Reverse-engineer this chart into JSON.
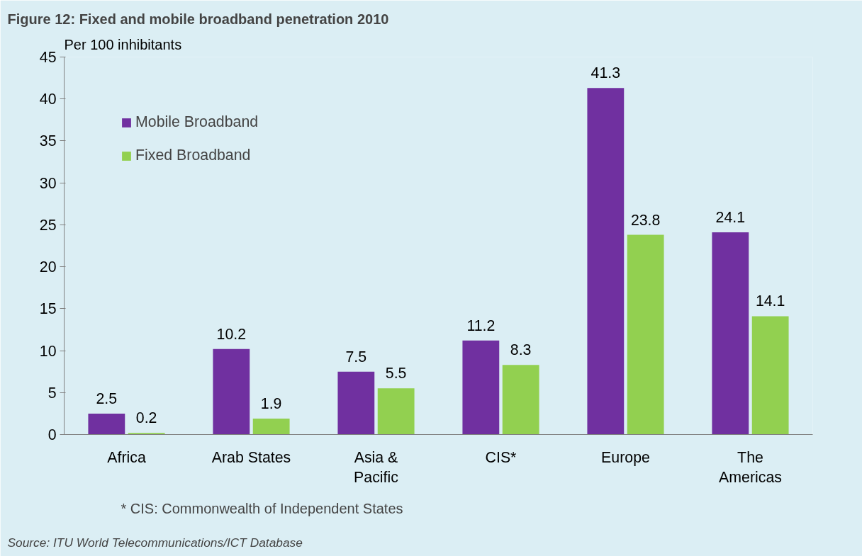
{
  "chart_data": {
    "type": "bar",
    "title": "Figure 12:  Fixed and mobile broadband penetration 2010",
    "ylabel": "Per 100 inhibitants",
    "categories": [
      "Africa",
      "Arab States",
      "Asia &\nPacific",
      "CIS*",
      "Europe",
      "The\nAmericas"
    ],
    "series": [
      {
        "name": "Mobile Broadband",
        "color": "#7030a0",
        "values": [
          2.5,
          10.2,
          7.5,
          11.2,
          41.3,
          24.1
        ]
      },
      {
        "name": "Fixed Broadband",
        "color": "#92d050",
        "values": [
          0.2,
          1.9,
          5.5,
          8.3,
          23.8,
          14.1
        ]
      }
    ],
    "ylim": [
      0,
      45
    ],
    "yticks": [
      0,
      5,
      10,
      15,
      20,
      25,
      30,
      35,
      40,
      45
    ],
    "data_labels": true,
    "grid": false,
    "legend": "top left",
    "annotations": [
      "* CIS: Commonwealth of Independent States",
      "Source: ITU World Telecommunications/ICT Database"
    ]
  }
}
